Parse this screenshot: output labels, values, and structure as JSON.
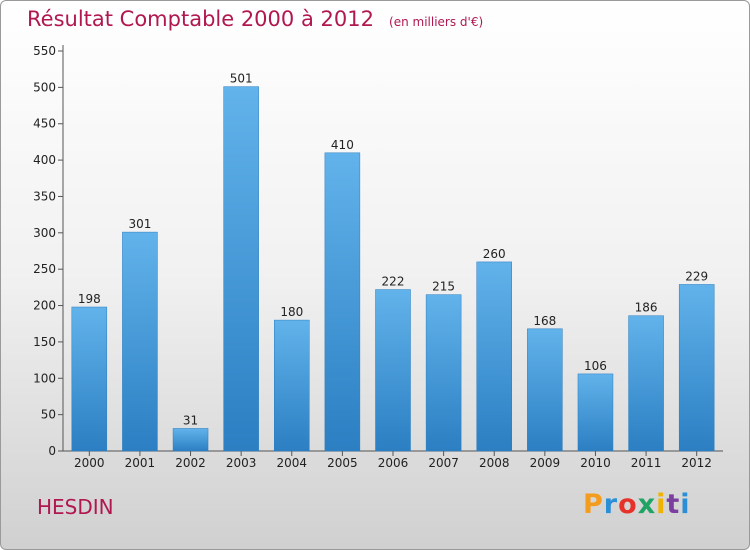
{
  "title": "Résultat Comptable 2000 à 2012",
  "subtitle": "(en milliers d'€)",
  "town": "HESDIN",
  "brand": {
    "letters": [
      "P",
      "r",
      "o",
      "x",
      "i",
      "t",
      "i"
    ],
    "colors": [
      "#f39c1e",
      "#2a8fd6",
      "#e6332a",
      "#1fa463",
      "#f0b400",
      "#7b3fa0",
      "#2a8fd6"
    ]
  },
  "chart_data": {
    "type": "bar",
    "categories": [
      "2000",
      "2001",
      "2002",
      "2003",
      "2004",
      "2005",
      "2006",
      "2007",
      "2008",
      "2009",
      "2010",
      "2011",
      "2012"
    ],
    "values": [
      198,
      301,
      31,
      501,
      180,
      410,
      222,
      215,
      260,
      168,
      106,
      186,
      229
    ],
    "ylim": [
      0,
      550
    ],
    "yticks": [
      0,
      50,
      100,
      150,
      200,
      250,
      300,
      350,
      400,
      450,
      500,
      550
    ],
    "grid": false,
    "bar_color": "#3a96d8"
  }
}
